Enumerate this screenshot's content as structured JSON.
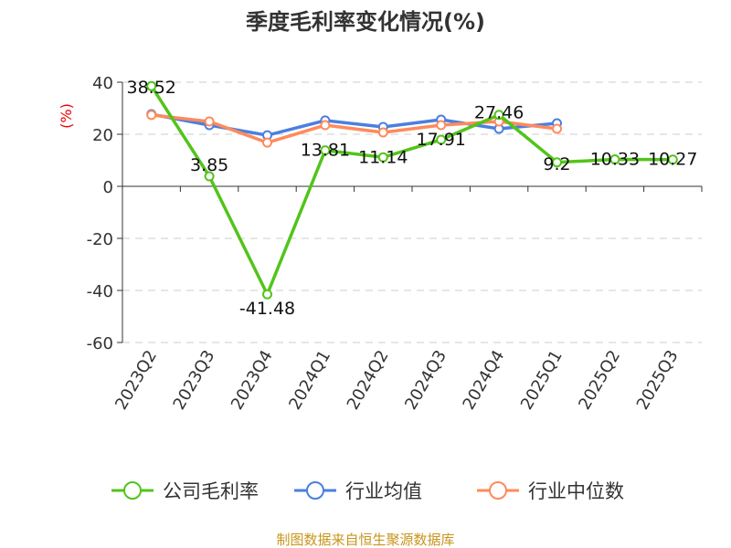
{
  "chart_data": {
    "type": "line",
    "title": "季度毛利率变化情况(%)",
    "ylabel": "(%)",
    "categories": [
      "2023Q2",
      "2023Q3",
      "2023Q4",
      "2024Q1",
      "2024Q2",
      "2024Q3",
      "2024Q4",
      "2025Q1",
      "2025Q2",
      "2025Q3"
    ],
    "ylim": [
      -60,
      40
    ],
    "yticks": [
      40,
      20,
      0,
      -20,
      -40,
      -60
    ],
    "grid": true,
    "legend_placement": "bottom",
    "series": [
      {
        "name": "公司毛利率",
        "color": "#52c41a",
        "values": [
          38.52,
          3.85,
          -41.48,
          13.81,
          11.14,
          17.91,
          27.46,
          9.2,
          10.33,
          10.27
        ],
        "labels": [
          "38.52",
          "3.85",
          "-41.48",
          "13.81",
          "11.14",
          "17.91",
          "27.46",
          "9.2",
          "10.33",
          "10.27"
        ]
      },
      {
        "name": "行业均值",
        "color": "#4a7fe0",
        "values": [
          27.7,
          23.5,
          19.6,
          25.3,
          22.8,
          25.6,
          22.1,
          24.2,
          null,
          null
        ]
      },
      {
        "name": "行业中位数",
        "color": "#ff8a5c",
        "values": [
          27.4,
          24.9,
          16.8,
          23.5,
          20.7,
          23.5,
          24.9,
          22.1,
          null,
          null
        ]
      }
    ]
  },
  "source": "制图数据来自恒生聚源数据库"
}
